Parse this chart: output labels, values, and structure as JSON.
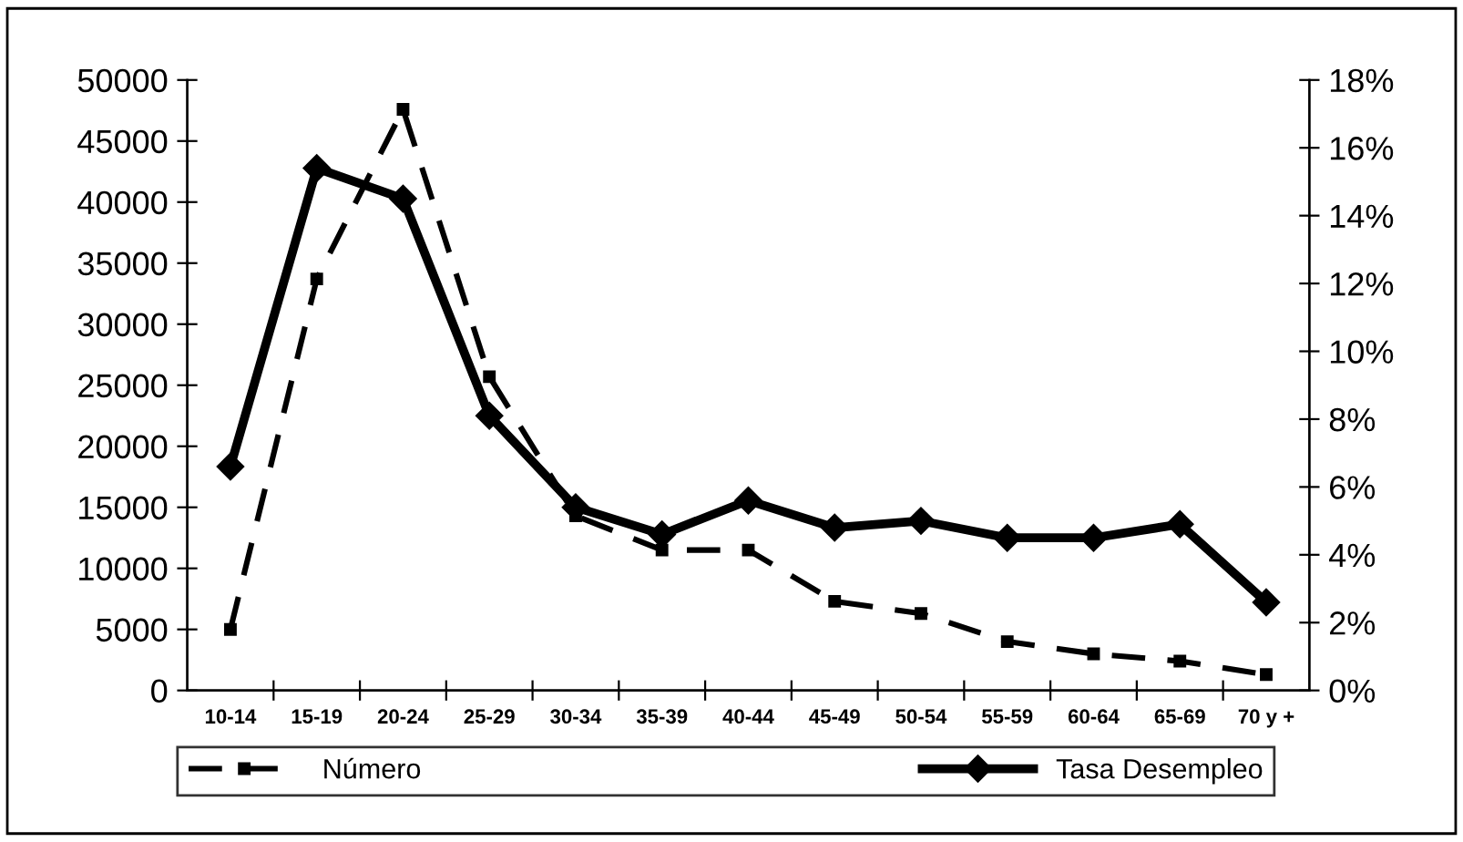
{
  "chart_data": {
    "type": "line",
    "categories": [
      "10-14",
      "15-19",
      "20-24",
      "25-29",
      "30-34",
      "35-39",
      "40-44",
      "45-49",
      "50-54",
      "55-59",
      "60-64",
      "65-69",
      "70 y +"
    ],
    "series": [
      {
        "name": "Número",
        "color": "#000000",
        "line_style": "dashed",
        "marker": "square",
        "values": [
          5000,
          33700,
          47600,
          25700,
          14300,
          11500,
          11500,
          7300,
          6300,
          4000,
          3000,
          2400,
          1300
        ]
      },
      {
        "name": "Tasa Desempleo",
        "color": "#000000",
        "line_style": "solid",
        "marker": "diamond",
        "axis": "y2",
        "values": [
          6.6,
          15.4,
          14.5,
          8.1,
          5.4,
          4.6,
          5.6,
          4.8,
          5.0,
          4.5,
          4.5,
          4.9,
          2.6
        ]
      }
    ],
    "ylim": [
      0,
      50000
    ],
    "yticks": [
      0,
      5000,
      10000,
      15000,
      20000,
      25000,
      30000,
      35000,
      40000,
      45000,
      50000
    ],
    "y2lim": [
      0,
      18
    ],
    "y2ticks": [
      {
        "value": 0,
        "label": "0%"
      },
      {
        "value": 2,
        "label": "2%"
      },
      {
        "value": 4,
        "label": "4%"
      },
      {
        "value": 6,
        "label": "6%"
      },
      {
        "value": 8,
        "label": "8%"
      },
      {
        "value": 10,
        "label": "10%"
      },
      {
        "value": 12,
        "label": "12%"
      },
      {
        "value": 14,
        "label": "14%"
      },
      {
        "value": 16,
        "label": "16%"
      },
      {
        "value": 18,
        "label": "18%"
      }
    ],
    "grid": false,
    "legend": "bottom"
  }
}
